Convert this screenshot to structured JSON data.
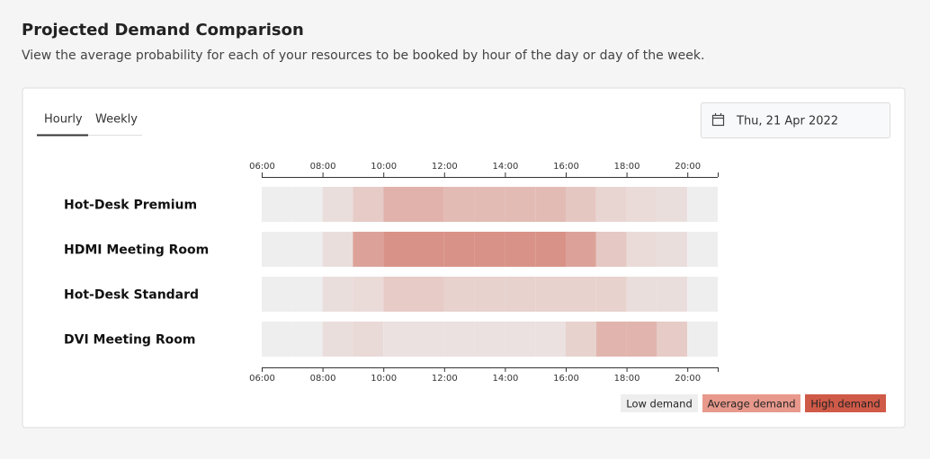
{
  "header": {
    "title": "Projected Demand Comparison",
    "subtitle": "View the average probability for each of your resources to be booked by hour of the day or day of the week."
  },
  "tabs": [
    "Hourly",
    "Weekly"
  ],
  "date": "Thu, 21 Apr 2022",
  "chart_data": {
    "type": "heatmap",
    "x": [
      6,
      7,
      8,
      9,
      10,
      11,
      12,
      13,
      14,
      15,
      16,
      17,
      18,
      19,
      20
    ],
    "xlim": [
      6,
      21
    ],
    "xticks": [
      {
        "value": 6,
        "label": "06:00"
      },
      {
        "value": 8,
        "label": "08:00"
      },
      {
        "value": 10,
        "label": "10:00"
      },
      {
        "value": 12,
        "label": "12:00"
      },
      {
        "value": 14,
        "label": "14:00"
      },
      {
        "value": 16,
        "label": "16:00"
      },
      {
        "value": 18,
        "label": "18:00"
      },
      {
        "value": 20,
        "label": "20:00"
      }
    ],
    "low_color": "#eeeeee",
    "high_color": "#c9503d",
    "series": [
      {
        "name": "Hot-Desk Premium",
        "values": [
          0,
          0,
          0.1,
          0.22,
          0.38,
          0.38,
          0.32,
          0.32,
          0.32,
          0.32,
          0.25,
          0.16,
          0.12,
          0.1,
          0
        ]
      },
      {
        "name": "HDMI Meeting Room",
        "values": [
          0,
          0,
          0.1,
          0.48,
          0.58,
          0.58,
          0.58,
          0.58,
          0.58,
          0.58,
          0.48,
          0.24,
          0.12,
          0.1,
          0
        ]
      },
      {
        "name": "Hot-Desk Standard",
        "values": [
          0,
          0,
          0.1,
          0.12,
          0.22,
          0.22,
          0.18,
          0.18,
          0.18,
          0.18,
          0.18,
          0.18,
          0.1,
          0.1,
          0
        ]
      },
      {
        "name": "DVI Meeting Room",
        "values": [
          0,
          0,
          0.1,
          0.13,
          0.08,
          0.08,
          0.08,
          0.08,
          0.08,
          0.08,
          0.18,
          0.36,
          0.36,
          0.22,
          0
        ]
      }
    ],
    "legend": [
      {
        "label": "Low demand",
        "color": "#eeeeee"
      },
      {
        "label": "Average demand",
        "color": "#e8998c"
      },
      {
        "label": "High demand",
        "color": "#d05a48"
      }
    ]
  }
}
